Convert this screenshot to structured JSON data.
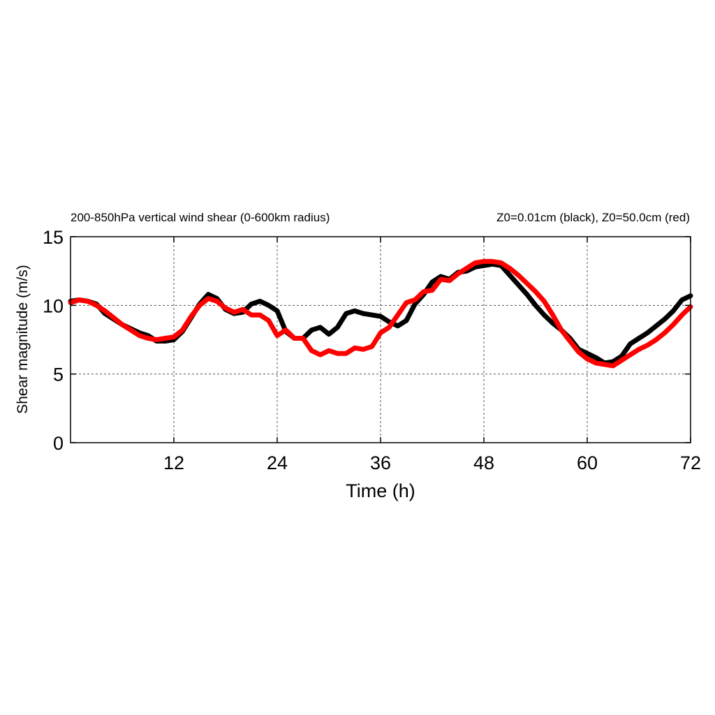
{
  "chart_data": {
    "type": "line",
    "title_left": "200-850hPa vertical wind shear (0-600km radius)",
    "title_right": "Z0=0.01cm (black), Z0=50.0cm (red)",
    "xlabel": "Time (h)",
    "ylabel": "Shear magnitude (m/s)",
    "xlim": [
      0,
      72
    ],
    "ylim": [
      0,
      15
    ],
    "xticks": [
      12,
      24,
      36,
      48,
      60,
      72
    ],
    "yticks": [
      0,
      5,
      10,
      15
    ],
    "grid": true,
    "series": [
      {
        "name": "Z0=0.01cm",
        "color": "#000000",
        "x": [
          0,
          1,
          2,
          3,
          4,
          5,
          6,
          7,
          8,
          9,
          10,
          11,
          12,
          13,
          14,
          15,
          16,
          17,
          18,
          19,
          20,
          21,
          22,
          23,
          24,
          25,
          26,
          27,
          28,
          29,
          30,
          31,
          32,
          33,
          34,
          35,
          36,
          37,
          38,
          39,
          40,
          41,
          42,
          43,
          44,
          45,
          46,
          47,
          48,
          49,
          50,
          51,
          52,
          53,
          54,
          55,
          56,
          57,
          58,
          59,
          60,
          61,
          62,
          63,
          64,
          65,
          66,
          67,
          68,
          69,
          70,
          71,
          72
        ],
        "values": [
          10.3,
          10.4,
          10.3,
          10.1,
          9.4,
          9.0,
          8.6,
          8.3,
          8.0,
          7.8,
          7.4,
          7.4,
          7.5,
          8.1,
          9.1,
          10.1,
          10.8,
          10.5,
          9.7,
          9.4,
          9.5,
          10.1,
          10.3,
          10.0,
          9.6,
          8.1,
          7.6,
          7.6,
          8.2,
          8.4,
          7.9,
          8.4,
          9.4,
          9.6,
          9.4,
          9.3,
          9.2,
          8.8,
          8.5,
          8.9,
          10.1,
          10.8,
          11.7,
          12.1,
          11.9,
          12.4,
          12.5,
          12.8,
          12.9,
          13.0,
          12.9,
          12.2,
          11.5,
          10.8,
          10.0,
          9.3,
          8.7,
          8.2,
          7.6,
          6.8,
          6.5,
          6.2,
          5.8,
          5.9,
          6.3,
          7.2,
          7.6,
          8.0,
          8.5,
          9.0,
          9.6,
          10.4,
          10.7
        ]
      },
      {
        "name": "Z0=50.0cm",
        "color": "#ff0000",
        "x": [
          0,
          1,
          2,
          3,
          4,
          5,
          6,
          7,
          8,
          9,
          10,
          11,
          12,
          13,
          14,
          15,
          16,
          17,
          18,
          19,
          20,
          21,
          22,
          23,
          24,
          25,
          26,
          27,
          28,
          29,
          30,
          31,
          32,
          33,
          34,
          35,
          36,
          37,
          38,
          39,
          40,
          41,
          42,
          43,
          44,
          45,
          46,
          47,
          48,
          49,
          50,
          51,
          52,
          53,
          54,
          55,
          56,
          57,
          58,
          59,
          60,
          61,
          62,
          63,
          64,
          65,
          66,
          67,
          68,
          69,
          70,
          71,
          72
        ],
        "values": [
          10.2,
          10.4,
          10.3,
          10.0,
          9.6,
          9.1,
          8.6,
          8.2,
          7.8,
          7.6,
          7.5,
          7.6,
          7.7,
          8.2,
          9.2,
          10.0,
          10.5,
          10.3,
          9.8,
          9.5,
          9.7,
          9.3,
          9.3,
          8.9,
          7.8,
          8.2,
          7.6,
          7.6,
          6.7,
          6.4,
          6.7,
          6.5,
          6.5,
          6.9,
          6.8,
          7.0,
          8.0,
          8.4,
          9.3,
          10.2,
          10.4,
          11.0,
          11.1,
          11.9,
          11.8,
          12.3,
          12.7,
          13.1,
          13.2,
          13.2,
          13.1,
          12.7,
          12.2,
          11.6,
          11.0,
          10.3,
          9.3,
          8.2,
          7.4,
          6.6,
          6.1,
          5.8,
          5.7,
          5.6,
          6.0,
          6.4,
          6.8,
          7.1,
          7.5,
          8.0,
          8.6,
          9.3,
          9.9
        ]
      }
    ]
  }
}
